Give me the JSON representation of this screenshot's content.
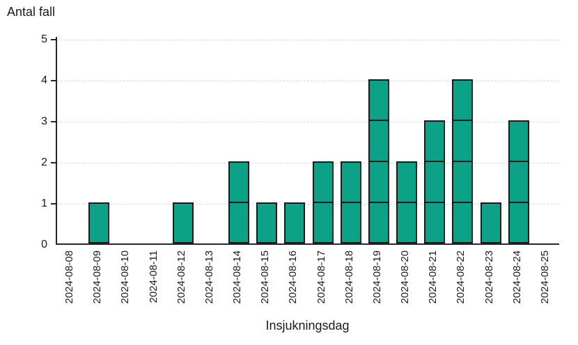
{
  "chart_data": {
    "type": "bar",
    "title": "Antal fall",
    "xlabel": "Insjukningsdag",
    "ylabel": "Antal fall",
    "categories": [
      "2024-08-08",
      "2024-08-09",
      "2024-08-10",
      "2024-08-11",
      "2024-08-12",
      "2024-08-13",
      "2024-08-14",
      "2024-08-15",
      "2024-08-16",
      "2024-08-17",
      "2024-08-18",
      "2024-08-19",
      "2024-08-20",
      "2024-08-21",
      "2024-08-22",
      "2024-08-23",
      "2024-08-24",
      "2024-08-25"
    ],
    "values": [
      0,
      1,
      0,
      0,
      1,
      0,
      2,
      1,
      1,
      2,
      2,
      4,
      2,
      3,
      4,
      1,
      3,
      0
    ],
    "ylim": [
      0,
      5
    ],
    "yticks": [
      0,
      1,
      2,
      3,
      4,
      5
    ],
    "grid": "horizontal-dashed",
    "legend": "none",
    "colors": {
      "bar_fill": "#0ca287",
      "bar_border": "#1a1a1a",
      "axis": "#262626",
      "gridline": "#d9d9d9",
      "text": "#1a1a1a"
    },
    "style": "unit-block epicurve (each case drawn as one outlined block)"
  }
}
